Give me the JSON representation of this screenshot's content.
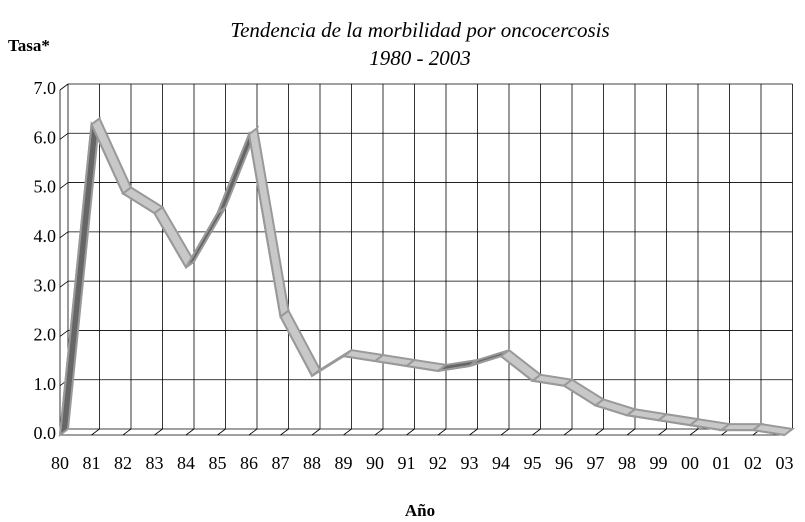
{
  "chart_data": {
    "type": "line",
    "title": "Tendencia de la morbilidad por oncocercosis",
    "subtitle": "1980 - 2003",
    "y_label": "Tasa*",
    "x_label": "Año",
    "categories": [
      "80",
      "81",
      "82",
      "83",
      "84",
      "85",
      "86",
      "87",
      "88",
      "89",
      "90",
      "91",
      "92",
      "93",
      "94",
      "95",
      "96",
      "97",
      "98",
      "99",
      "00",
      "01",
      "02",
      "03"
    ],
    "series": [
      {
        "name": "Tasa",
        "color": "#c8c8c8",
        "values": [
          0.0,
          6.3,
          4.9,
          4.5,
          3.4,
          4.5,
          6.1,
          2.4,
          1.2,
          1.6,
          1.5,
          1.4,
          1.3,
          1.4,
          1.6,
          1.1,
          1.0,
          0.6,
          0.4,
          0.3,
          0.2,
          0.1,
          0.1,
          0.0
        ]
      }
    ],
    "ylim": [
      0,
      7
    ],
    "yticks": [
      {
        "value": 0,
        "label": "0.0"
      },
      {
        "value": 1,
        "label": "1.0"
      },
      {
        "value": 2,
        "label": "2.0"
      },
      {
        "value": 3,
        "label": "3.0"
      },
      {
        "value": 4,
        "label": "4.0"
      },
      {
        "value": 5,
        "label": "5.0"
      },
      {
        "value": 6,
        "label": "6.0"
      },
      {
        "value": 7,
        "label": "7.0"
      }
    ],
    "grid": true
  }
}
